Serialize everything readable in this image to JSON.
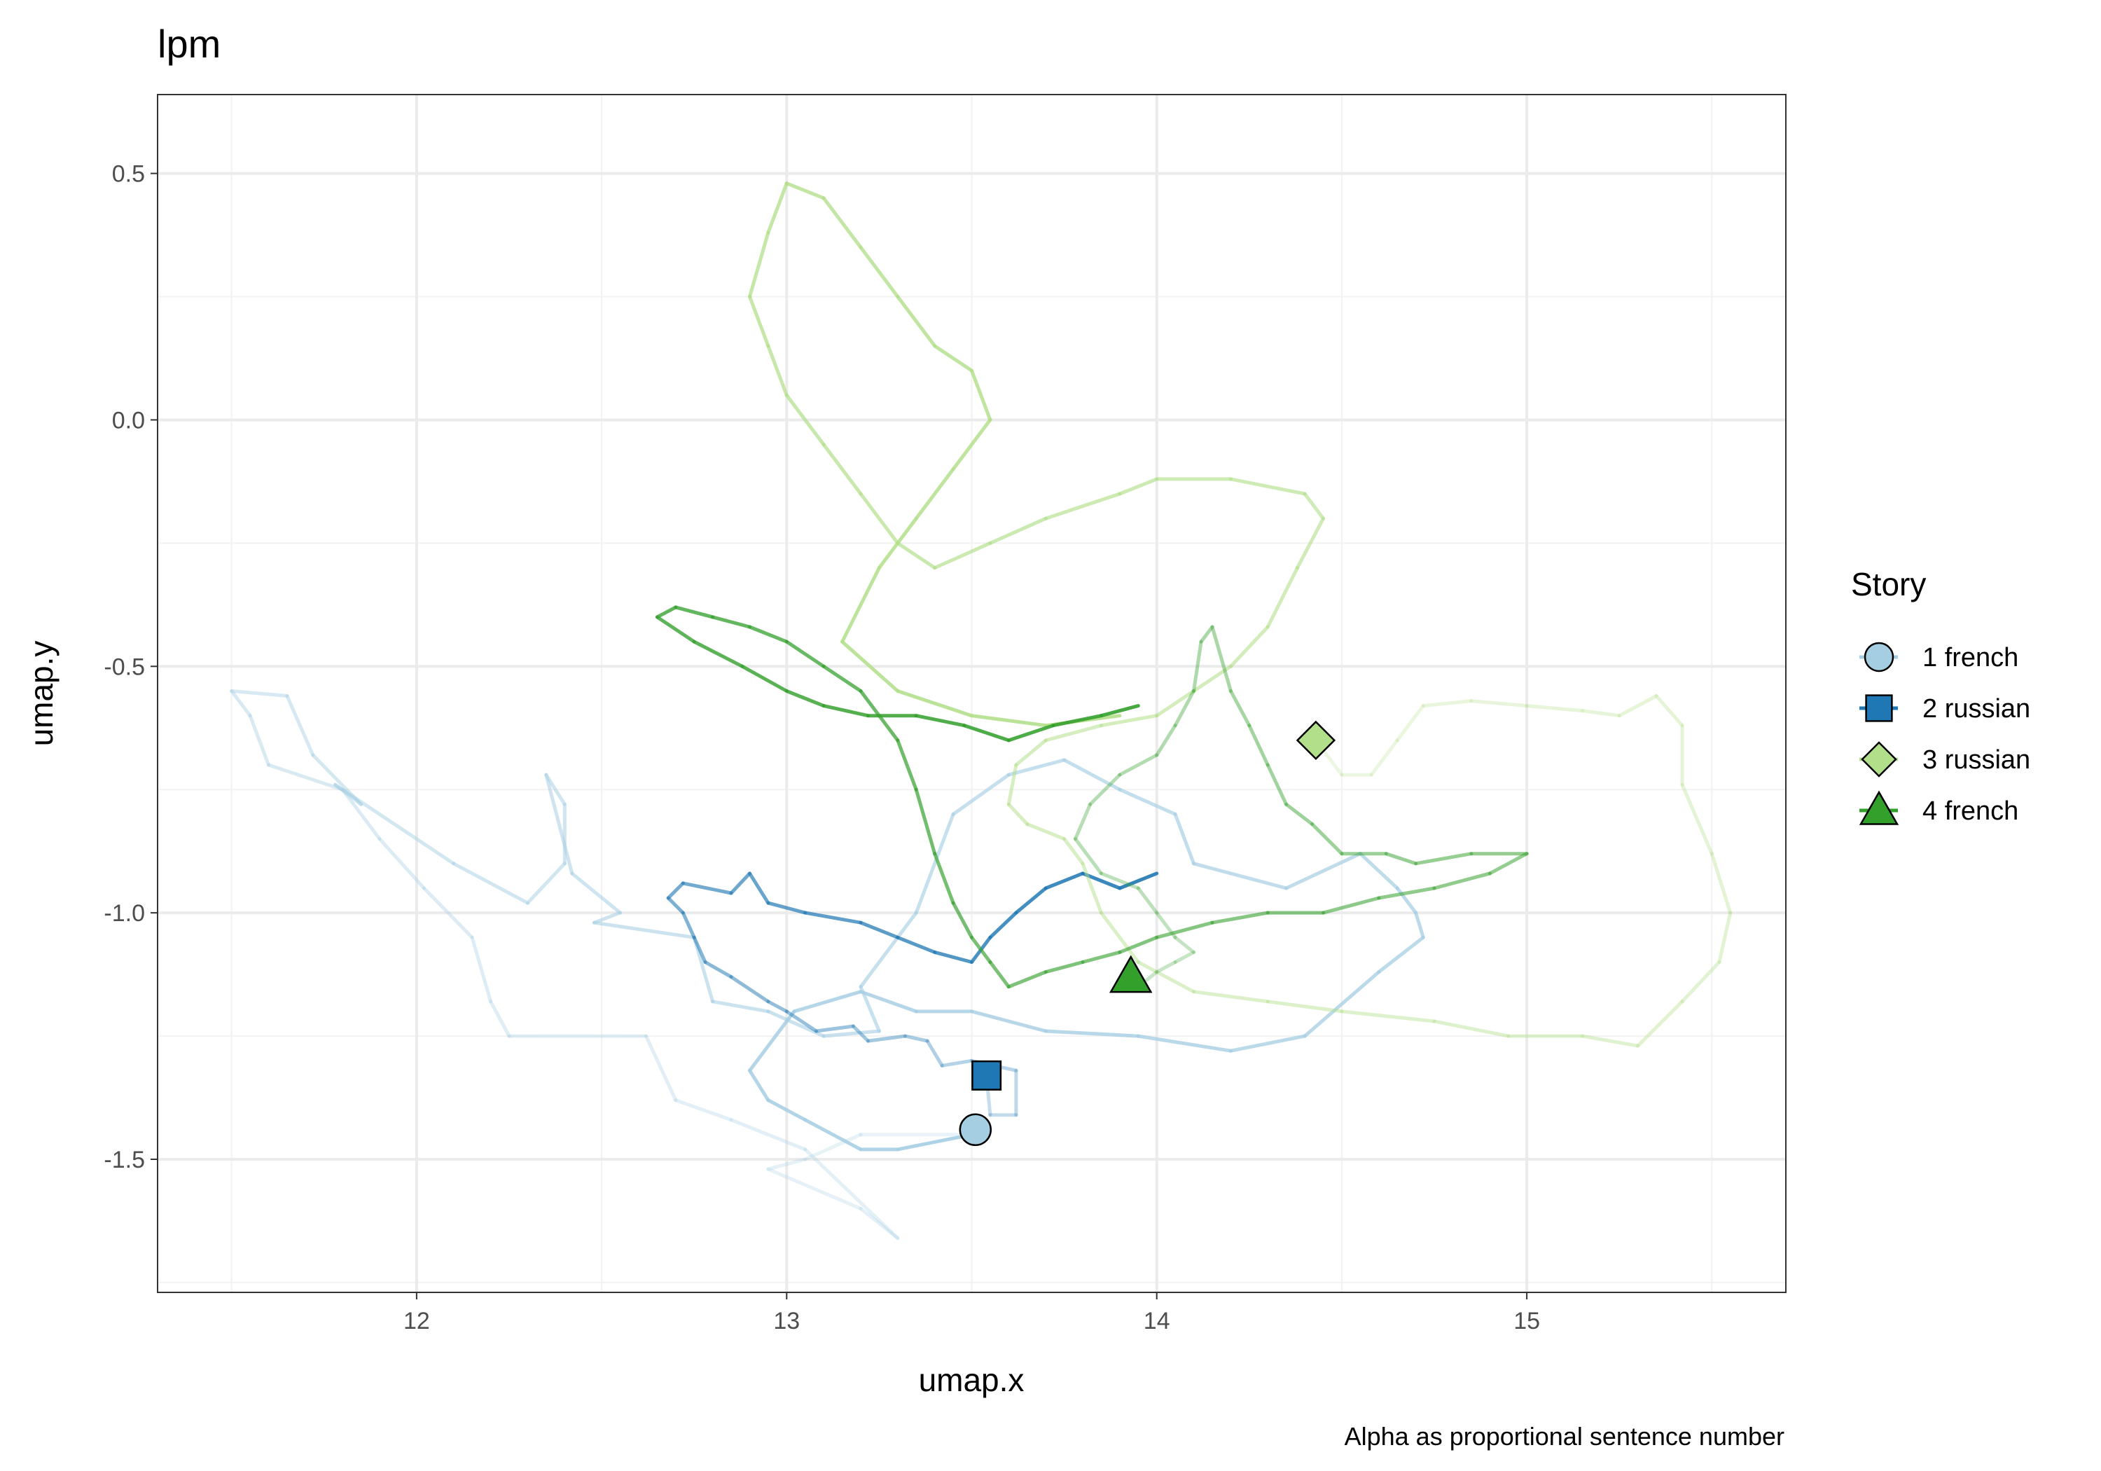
{
  "chart_data": {
    "type": "line",
    "title": "lpm",
    "xlabel": "umap.x",
    "ylabel": "umap.y",
    "caption": "Alpha as proportional sentence number",
    "xlim": [
      11.3,
      15.7
    ],
    "ylim": [
      -1.77,
      0.66
    ],
    "x_ticks": [
      12,
      13,
      14,
      15
    ],
    "x_tick_labels": [
      "12",
      "13",
      "14",
      "15"
    ],
    "y_ticks": [
      -1.5,
      -1.0,
      -0.5,
      0.0,
      0.5
    ],
    "y_tick_labels": [
      "-1.5",
      "-1.0",
      "-0.5",
      "0.0",
      "0.5"
    ],
    "grid": true,
    "legend_title": "Story",
    "legend_position": "right",
    "series": [
      {
        "name": "1 french",
        "color": "#a6cee3",
        "marker": "circle",
        "start": [
          13.51,
          -1.44
        ],
        "path": [
          [
            13.51,
            -1.44
          ],
          [
            13.5,
            -1.45
          ],
          [
            13.2,
            -1.45
          ],
          [
            13.05,
            -1.5
          ],
          [
            12.95,
            -1.52
          ],
          [
            13.2,
            -1.6
          ],
          [
            13.3,
            -1.66
          ],
          [
            13.05,
            -1.48
          ],
          [
            12.85,
            -1.42
          ],
          [
            12.7,
            -1.38
          ],
          [
            12.62,
            -1.25
          ],
          [
            12.25,
            -1.25
          ],
          [
            12.2,
            -1.18
          ],
          [
            12.15,
            -1.05
          ],
          [
            12.02,
            -0.95
          ],
          [
            11.9,
            -0.85
          ],
          [
            11.8,
            -0.75
          ],
          [
            11.6,
            -0.7
          ],
          [
            11.55,
            -0.6
          ],
          [
            11.5,
            -0.55
          ],
          [
            11.65,
            -0.56
          ],
          [
            11.72,
            -0.68
          ],
          [
            11.85,
            -0.78
          ],
          [
            11.78,
            -0.74
          ],
          [
            12.1,
            -0.9
          ],
          [
            12.3,
            -0.98
          ],
          [
            12.4,
            -0.9
          ],
          [
            12.4,
            -0.78
          ],
          [
            12.35,
            -0.72
          ],
          [
            12.42,
            -0.92
          ],
          [
            12.55,
            -1.0
          ],
          [
            12.48,
            -1.02
          ],
          [
            12.75,
            -1.05
          ],
          [
            12.8,
            -1.18
          ],
          [
            12.95,
            -1.2
          ],
          [
            13.1,
            -1.25
          ],
          [
            13.25,
            -1.24
          ],
          [
            13.2,
            -1.15
          ],
          [
            13.35,
            -1.0
          ],
          [
            13.45,
            -0.8
          ],
          [
            13.6,
            -0.72
          ],
          [
            13.75,
            -0.69
          ],
          [
            13.9,
            -0.75
          ],
          [
            14.05,
            -0.8
          ],
          [
            14.1,
            -0.9
          ],
          [
            14.35,
            -0.95
          ],
          [
            14.55,
            -0.88
          ],
          [
            14.65,
            -0.95
          ],
          [
            14.7,
            -1.0
          ],
          [
            14.72,
            -1.05
          ],
          [
            14.6,
            -1.12
          ],
          [
            14.4,
            -1.25
          ],
          [
            14.2,
            -1.28
          ],
          [
            13.95,
            -1.25
          ],
          [
            13.7,
            -1.24
          ],
          [
            13.5,
            -1.2
          ],
          [
            13.35,
            -1.2
          ],
          [
            13.2,
            -1.16
          ],
          [
            13.02,
            -1.2
          ],
          [
            12.9,
            -1.32
          ],
          [
            12.95,
            -1.38
          ],
          [
            13.05,
            -1.42
          ],
          [
            13.2,
            -1.48
          ],
          [
            13.3,
            -1.48
          ],
          [
            13.5,
            -1.45
          ]
        ]
      },
      {
        "name": "2 russian",
        "color": "#1f78b4",
        "marker": "square",
        "start": [
          13.54,
          -1.33
        ],
        "path": [
          [
            13.54,
            -1.33
          ],
          [
            13.55,
            -1.41
          ],
          [
            13.62,
            -1.41
          ],
          [
            13.62,
            -1.32
          ],
          [
            13.5,
            -1.3
          ],
          [
            13.42,
            -1.31
          ],
          [
            13.38,
            -1.26
          ],
          [
            13.32,
            -1.25
          ],
          [
            13.22,
            -1.26
          ],
          [
            13.18,
            -1.23
          ],
          [
            13.08,
            -1.24
          ],
          [
            13.0,
            -1.2
          ],
          [
            12.95,
            -1.18
          ],
          [
            12.85,
            -1.13
          ],
          [
            12.78,
            -1.1
          ],
          [
            12.75,
            -1.05
          ],
          [
            12.72,
            -1.0
          ],
          [
            12.68,
            -0.97
          ],
          [
            12.72,
            -0.94
          ],
          [
            12.85,
            -0.96
          ],
          [
            12.9,
            -0.92
          ],
          [
            12.95,
            -0.98
          ],
          [
            13.05,
            -1.0
          ],
          [
            13.2,
            -1.02
          ],
          [
            13.3,
            -1.05
          ],
          [
            13.4,
            -1.08
          ],
          [
            13.5,
            -1.1
          ],
          [
            13.55,
            -1.05
          ],
          [
            13.62,
            -1.0
          ],
          [
            13.7,
            -0.95
          ],
          [
            13.8,
            -0.92
          ],
          [
            13.9,
            -0.95
          ],
          [
            14.0,
            -0.92
          ]
        ]
      },
      {
        "name": "3 russian",
        "color": "#b2df8a",
        "marker": "diamond",
        "start": [
          14.43,
          -0.65
        ],
        "path": [
          [
            14.43,
            -0.65
          ],
          [
            14.5,
            -0.72
          ],
          [
            14.58,
            -0.72
          ],
          [
            14.65,
            -0.65
          ],
          [
            14.72,
            -0.58
          ],
          [
            14.85,
            -0.57
          ],
          [
            15.0,
            -0.58
          ],
          [
            15.15,
            -0.59
          ],
          [
            15.25,
            -0.6
          ],
          [
            15.35,
            -0.56
          ],
          [
            15.42,
            -0.62
          ],
          [
            15.42,
            -0.74
          ],
          [
            15.5,
            -0.88
          ],
          [
            15.55,
            -1.0
          ],
          [
            15.52,
            -1.1
          ],
          [
            15.42,
            -1.18
          ],
          [
            15.3,
            -1.27
          ],
          [
            15.15,
            -1.25
          ],
          [
            14.95,
            -1.25
          ],
          [
            14.75,
            -1.22
          ],
          [
            14.5,
            -1.2
          ],
          [
            14.3,
            -1.18
          ],
          [
            14.1,
            -1.16
          ],
          [
            13.95,
            -1.1
          ],
          [
            13.85,
            -1.0
          ],
          [
            13.8,
            -0.9
          ],
          [
            13.75,
            -0.85
          ],
          [
            13.65,
            -0.82
          ],
          [
            13.6,
            -0.78
          ],
          [
            13.62,
            -0.7
          ],
          [
            13.7,
            -0.65
          ],
          [
            13.85,
            -0.62
          ],
          [
            14.0,
            -0.6
          ],
          [
            14.1,
            -0.55
          ],
          [
            14.2,
            -0.5
          ],
          [
            14.3,
            -0.42
          ],
          [
            14.38,
            -0.3
          ],
          [
            14.45,
            -0.2
          ],
          [
            14.4,
            -0.15
          ],
          [
            14.2,
            -0.12
          ],
          [
            14.0,
            -0.12
          ],
          [
            13.9,
            -0.15
          ],
          [
            13.7,
            -0.2
          ],
          [
            13.55,
            -0.25
          ],
          [
            13.4,
            -0.3
          ],
          [
            13.3,
            -0.25
          ],
          [
            13.2,
            -0.15
          ],
          [
            13.1,
            -0.05
          ],
          [
            13.0,
            0.05
          ],
          [
            12.95,
            0.15
          ],
          [
            12.9,
            0.25
          ],
          [
            12.95,
            0.38
          ],
          [
            13.0,
            0.48
          ],
          [
            13.1,
            0.45
          ],
          [
            13.2,
            0.35
          ],
          [
            13.3,
            0.25
          ],
          [
            13.4,
            0.15
          ],
          [
            13.5,
            0.1
          ],
          [
            13.55,
            0.0
          ],
          [
            13.45,
            -0.1
          ],
          [
            13.35,
            -0.2
          ],
          [
            13.25,
            -0.3
          ],
          [
            13.15,
            -0.45
          ],
          [
            13.3,
            -0.55
          ],
          [
            13.5,
            -0.6
          ],
          [
            13.7,
            -0.62
          ],
          [
            13.9,
            -0.6
          ]
        ]
      },
      {
        "name": "4 french",
        "color": "#33a02c",
        "marker": "triangle",
        "start": [
          13.93,
          -1.13
        ],
        "path": [
          [
            13.93,
            -1.13
          ],
          [
            13.95,
            -1.15
          ],
          [
            14.0,
            -1.12
          ],
          [
            14.05,
            -1.1
          ],
          [
            14.1,
            -1.08
          ],
          [
            14.05,
            -1.05
          ],
          [
            14.0,
            -1.0
          ],
          [
            13.95,
            -0.95
          ],
          [
            13.85,
            -0.92
          ],
          [
            13.78,
            -0.85
          ],
          [
            13.82,
            -0.78
          ],
          [
            13.9,
            -0.72
          ],
          [
            14.0,
            -0.68
          ],
          [
            14.05,
            -0.62
          ],
          [
            14.1,
            -0.55
          ],
          [
            14.12,
            -0.45
          ],
          [
            14.15,
            -0.42
          ],
          [
            14.2,
            -0.55
          ],
          [
            14.25,
            -0.62
          ],
          [
            14.3,
            -0.7
          ],
          [
            14.35,
            -0.78
          ],
          [
            14.42,
            -0.82
          ],
          [
            14.5,
            -0.88
          ],
          [
            14.62,
            -0.88
          ],
          [
            14.7,
            -0.9
          ],
          [
            14.85,
            -0.88
          ],
          [
            15.0,
            -0.88
          ],
          [
            14.9,
            -0.92
          ],
          [
            14.75,
            -0.95
          ],
          [
            14.6,
            -0.97
          ],
          [
            14.45,
            -1.0
          ],
          [
            14.3,
            -1.0
          ],
          [
            14.15,
            -1.02
          ],
          [
            14.0,
            -1.05
          ],
          [
            13.9,
            -1.08
          ],
          [
            13.8,
            -1.1
          ],
          [
            13.7,
            -1.12
          ],
          [
            13.6,
            -1.15
          ],
          [
            13.55,
            -1.1
          ],
          [
            13.5,
            -1.05
          ],
          [
            13.45,
            -0.98
          ],
          [
            13.4,
            -0.88
          ],
          [
            13.35,
            -0.75
          ],
          [
            13.3,
            -0.65
          ],
          [
            13.2,
            -0.55
          ],
          [
            13.1,
            -0.5
          ],
          [
            13.0,
            -0.45
          ],
          [
            12.9,
            -0.42
          ],
          [
            12.8,
            -0.4
          ],
          [
            12.7,
            -0.38
          ],
          [
            12.65,
            -0.4
          ],
          [
            12.75,
            -0.45
          ],
          [
            12.88,
            -0.5
          ],
          [
            13.0,
            -0.55
          ],
          [
            13.1,
            -0.58
          ],
          [
            13.22,
            -0.6
          ],
          [
            13.35,
            -0.6
          ],
          [
            13.48,
            -0.62
          ],
          [
            13.6,
            -0.65
          ],
          [
            13.72,
            -0.62
          ],
          [
            13.85,
            -0.6
          ],
          [
            13.95,
            -0.58
          ]
        ]
      }
    ]
  }
}
